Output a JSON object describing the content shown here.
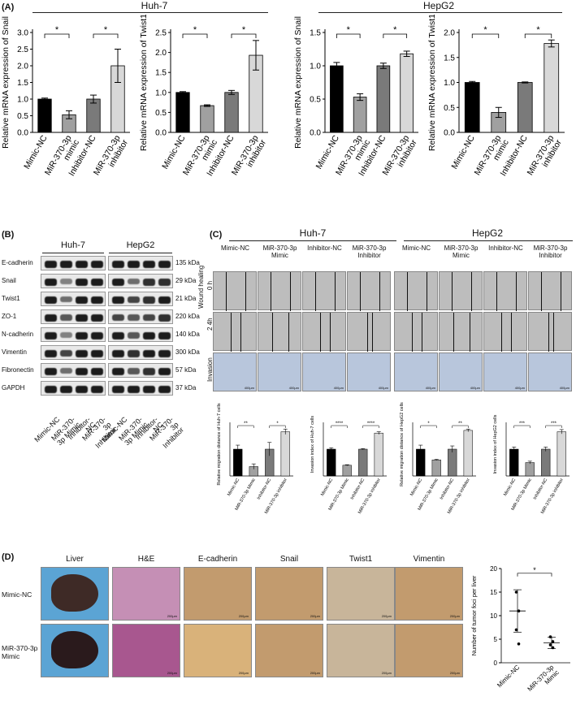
{
  "panelA": {
    "label": "(A)",
    "group_left": "Huh-7",
    "group_right": "HepG2",
    "charts": [
      {
        "ylabel": "Relative mRNA expression of Snail",
        "yticks": [
          "0.0",
          "0.5",
          "1.0",
          "1.5",
          "2.0",
          "2.5",
          "3.0"
        ],
        "ymax": 3.0,
        "values": [
          1.0,
          0.53,
          1.0,
          2.0
        ],
        "errors": [
          0.03,
          0.12,
          0.12,
          0.5
        ],
        "sig": [
          "*",
          "*"
        ]
      },
      {
        "ylabel": "Relative mRNA expression of Twist1",
        "yticks": [
          "0.0",
          "0.5",
          "1.0",
          "1.5",
          "2.0",
          "2.5"
        ],
        "ymax": 2.5,
        "values": [
          1.0,
          0.67,
          1.0,
          1.93
        ],
        "errors": [
          0.02,
          0.02,
          0.05,
          0.37
        ],
        "sig": [
          "*",
          "*"
        ]
      },
      {
        "ylabel": "Relative mRNA expression of Snail",
        "yticks": [
          "0.0",
          "0.5",
          "1.0",
          "1.5"
        ],
        "ymax": 1.5,
        "values": [
          1.0,
          0.53,
          1.0,
          1.18
        ],
        "errors": [
          0.05,
          0.05,
          0.04,
          0.04
        ],
        "sig": [
          "*",
          "*"
        ]
      },
      {
        "ylabel": "Relative mRNA expression of Twist1",
        "yticks": [
          "0.0",
          "0.5",
          "1.0",
          "1.5",
          "2.0"
        ],
        "ymax": 2.0,
        "values": [
          1.0,
          0.4,
          1.0,
          1.78
        ],
        "errors": [
          0.02,
          0.1,
          0.01,
          0.07
        ],
        "sig": [
          "*",
          "*"
        ]
      }
    ],
    "categories": [
      "Mimic-NC",
      "MiR-370-3p mimic",
      "Inhibitor-NC",
      "MiR-370-3p inhibitor"
    ]
  },
  "panelB": {
    "label": "(B)",
    "groups": [
      "Huh-7",
      "HepG2"
    ],
    "proteins": [
      {
        "name": "E-cadherin",
        "kda": "135 kDa"
      },
      {
        "name": "Snail",
        "kda": "29  kDa"
      },
      {
        "name": "Twist1",
        "kda": "21  kDa"
      },
      {
        "name": "ZO-1",
        "kda": "220 kDa"
      },
      {
        "name": "N-cadherin",
        "kda": "140 kDa"
      },
      {
        "name": "Vimentin",
        "kda": "300 kDa"
      },
      {
        "name": "Fibronectin",
        "kda": "57  kDa"
      },
      {
        "name": "GAPDH",
        "kda": "37  kDa"
      }
    ],
    "lanes": [
      "Mimic-NC",
      "MiR-370-3p Mimic",
      "Inhibitor-NC",
      "MiR-370-3p Inhibitor",
      "Mimic-NC",
      "MiR-370-3p Mimic",
      "Inhibitor-NC",
      "MiR-370-3p Inhibitor"
    ]
  },
  "panelC": {
    "label": "(C)",
    "groups": [
      "Huh-7",
      "HepG2"
    ],
    "columns": [
      "Mimic-NC",
      "MiR-370-3p Mimic",
      "Inhibitor-NC",
      "MiR-370-3p Inhibitor"
    ],
    "row_wound": "Wound healing",
    "time0": "0 h",
    "time24": "2 4h",
    "row_invasion": "Invasion",
    "scale": "400μm",
    "charts": [
      {
        "ylabel": "Relative migration distance of Huh-7 cells",
        "values": [
          1.0,
          0.35,
          1.0,
          1.65
        ],
        "errors": [
          0.15,
          0.1,
          0.25,
          0.1
        ],
        "sig": [
          "**",
          "*"
        ]
      },
      {
        "ylabel": "Invasion index of Huh-7 cells",
        "values": [
          1.0,
          0.4,
          1.0,
          1.6
        ],
        "errors": [
          0.05,
          0.02,
          0.02,
          0.05
        ],
        "sig": [
          "****",
          "****"
        ]
      },
      {
        "ylabel": "Relative migration distance of HepG2 cells",
        "values": [
          1.0,
          0.6,
          1.0,
          1.7
        ],
        "errors": [
          0.15,
          0.02,
          0.12,
          0.05
        ],
        "sig": [
          "*",
          "**"
        ]
      },
      {
        "ylabel": "Invasion index of HepG2 cells",
        "values": [
          1.0,
          0.5,
          1.0,
          1.65
        ],
        "errors": [
          0.08,
          0.05,
          0.08,
          0.08
        ],
        "sig": [
          "***",
          "***"
        ]
      }
    ],
    "categories": [
      "Mimic-NC",
      "MiR-370-3p Mimic",
      "Inhibitor-NC",
      "MiR-370-3p inhibitor"
    ]
  },
  "panelD": {
    "label": "(D)",
    "columns": [
      "Liver",
      "H&E",
      "E-cadherin",
      "Snail",
      "Twist1",
      "Vimentin"
    ],
    "rows": [
      "Mimic-NC",
      "MiR-370-3p Mimic"
    ],
    "scale": "200μm",
    "chart": {
      "ylabel": "Number of tumor foci per liver",
      "yticks": [
        "0",
        "5",
        "10",
        "15",
        "20"
      ],
      "ymax": 20,
      "categories": [
        "Mimic-NC",
        "MiR-370-3p Mimic"
      ],
      "points": [
        [
          15,
          11,
          7,
          4
        ],
        [
          5.5,
          4.5,
          3.8,
          3.2
        ]
      ],
      "means": [
        11,
        4.2
      ],
      "sd": [
        4.5,
        1.2
      ],
      "sig": "*"
    }
  },
  "chart_data": [
    {
      "type": "bar",
      "title": "",
      "ylabel": "Relative mRNA expression of Snail",
      "group": "Huh-7",
      "categories": [
        "Mimic-NC",
        "MiR-370-3p mimic",
        "Inhibitor-NC",
        "MiR-370-3p inhibitor"
      ],
      "values": [
        1.0,
        0.53,
        1.0,
        2.0
      ],
      "ylim": [
        0,
        3.0
      ]
    },
    {
      "type": "bar",
      "title": "",
      "ylabel": "Relative mRNA expression of Twist1",
      "group": "Huh-7",
      "categories": [
        "Mimic-NC",
        "MiR-370-3p mimic",
        "Inhibitor-NC",
        "MiR-370-3p inhibitor"
      ],
      "values": [
        1.0,
        0.67,
        1.0,
        1.93
      ],
      "ylim": [
        0,
        2.5
      ]
    },
    {
      "type": "bar",
      "title": "",
      "ylabel": "Relative mRNA expression of Snail",
      "group": "HepG2",
      "categories": [
        "Mimic-NC",
        "MiR-370-3p mimic",
        "Inhibitor-NC",
        "MiR-370-3p inhibitor"
      ],
      "values": [
        1.0,
        0.53,
        1.0,
        1.18
      ],
      "ylim": [
        0,
        1.5
      ]
    },
    {
      "type": "bar",
      "title": "",
      "ylabel": "Relative mRNA expression of Twist1",
      "group": "HepG2",
      "categories": [
        "Mimic-NC",
        "MiR-370-3p mimic",
        "Inhibitor-NC",
        "MiR-370-3p inhibitor"
      ],
      "values": [
        1.0,
        0.4,
        1.0,
        1.78
      ],
      "ylim": [
        0,
        2.0
      ]
    },
    {
      "type": "scatter",
      "title": "",
      "ylabel": "Number of tumor foci per liver",
      "categories": [
        "Mimic-NC",
        "MiR-370-3p Mimic"
      ],
      "ylim": [
        0,
        20
      ]
    }
  ]
}
